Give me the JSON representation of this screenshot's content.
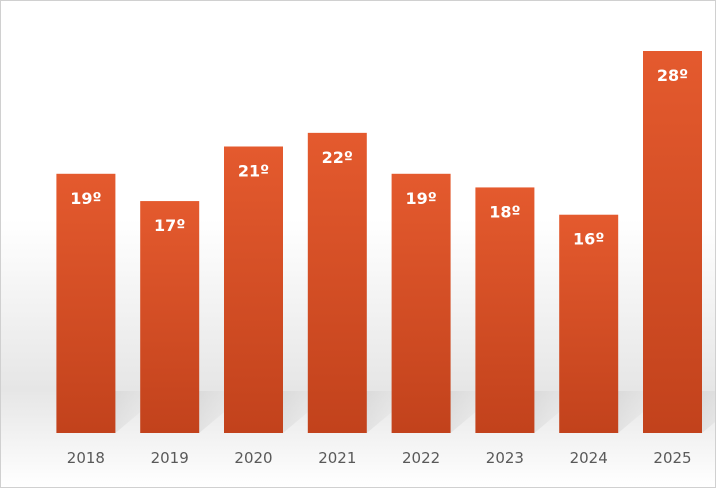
{
  "chart_data": {
    "type": "bar",
    "categories": [
      "2018",
      "2019",
      "2020",
      "2021",
      "2022",
      "2023",
      "2024",
      "2025"
    ],
    "values": [
      19,
      17,
      21,
      22,
      19,
      18,
      16,
      28
    ],
    "data_labels": [
      "19º",
      "17º",
      "21º",
      "22º",
      "19º",
      "18º",
      "16º",
      "28º"
    ],
    "title": "",
    "xlabel": "",
    "ylabel": "",
    "ylim": [
      0,
      30
    ],
    "grid": false,
    "legend": "none",
    "colors": {
      "bar_top": "#e45a2e",
      "bar_bottom": "#c2421c",
      "label_text": "#ffffff",
      "tick_text": "#595959"
    }
  }
}
